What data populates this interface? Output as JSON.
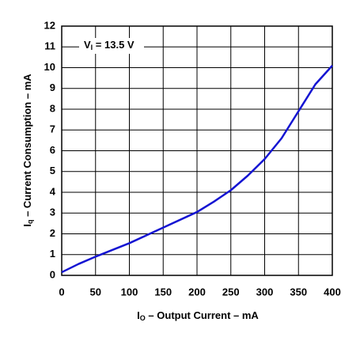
{
  "chart_data": {
    "type": "line",
    "x_label": [
      "I",
      "O",
      " – Output Current – mA"
    ],
    "y_label": [
      "I",
      "q",
      " – Current Consumption – mA"
    ],
    "annotation": [
      "V",
      "I",
      " = 13.5 V"
    ],
    "x": [
      0,
      25,
      50,
      100,
      150,
      200,
      225,
      250,
      275,
      300,
      325,
      350,
      375,
      400
    ],
    "series": [
      {
        "color": "#1414d2",
        "values": [
          0.15,
          0.55,
          0.9,
          1.55,
          2.3,
          3.05,
          3.55,
          4.1,
          4.8,
          5.6,
          6.6,
          7.9,
          9.2,
          10.1
        ]
      }
    ],
    "xlim": [
      0,
      400
    ],
    "xticks": [
      0,
      50,
      100,
      150,
      200,
      250,
      300,
      350,
      400
    ],
    "ylim": [
      0,
      12
    ],
    "yticks": [
      0,
      1,
      2,
      3,
      4,
      5,
      6,
      7,
      8,
      9,
      10,
      11,
      12
    ],
    "grid": true
  }
}
